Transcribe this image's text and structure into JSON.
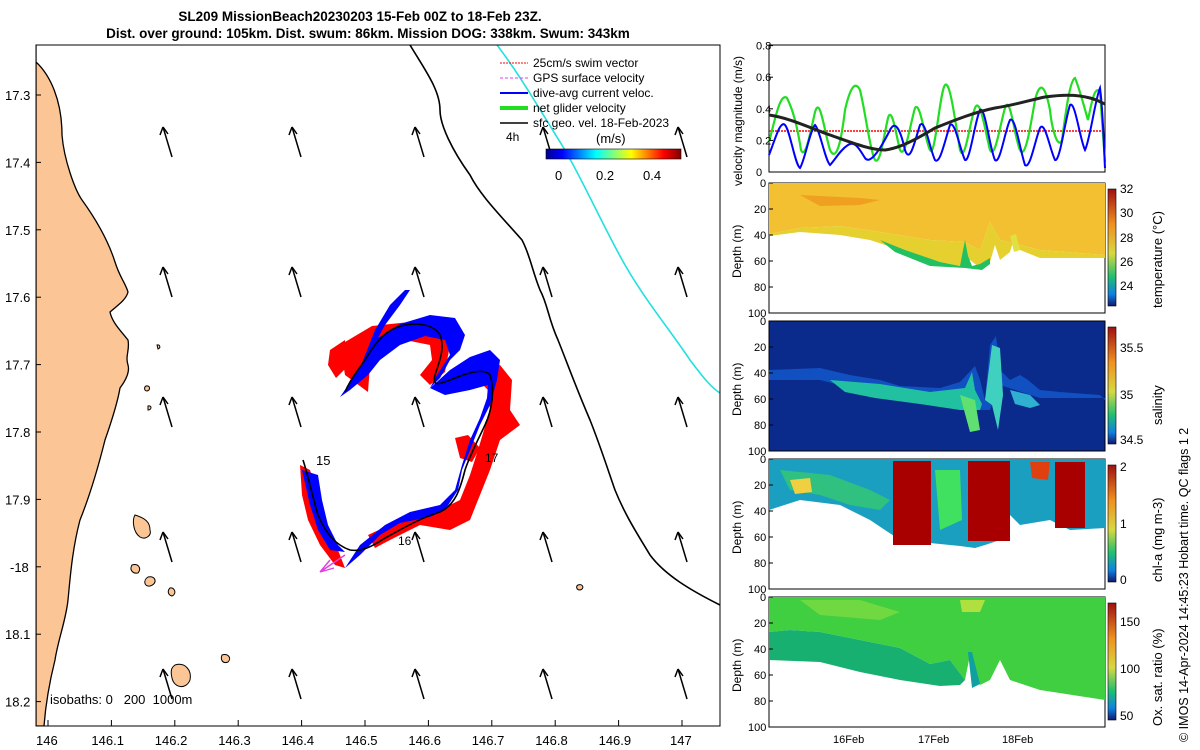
{
  "titles": {
    "line1": "SL209 MissionBeach20230203 15-Feb 00Z to 18-Feb 23Z.",
    "line2": "Dist. over ground: 105km. Dist. swum: 86km. Mission DOG: 338km. Swum: 343km"
  },
  "map": {
    "lon_ticks": [
      "146",
      "146.1",
      "146.2",
      "146.3",
      "146.4",
      "146.5",
      "146.6",
      "146.7",
      "146.8",
      "146.9",
      "147"
    ],
    "lat_ticks": [
      "17.3",
      "17.4",
      "17.5",
      "17.6",
      "17.7",
      "17.8",
      "17.9",
      "-18",
      "18.1",
      "18.2"
    ],
    "legend": [
      "25cm/s swim vector",
      "GPS surface velocity",
      "dive-avg current veloc.",
      "net glider velocity",
      "sfc geo. vel. 18-Feb-2023"
    ],
    "colorbar": {
      "interval": "4h",
      "unit": "(m/s)",
      "ticks": [
        "0",
        "0.2",
        "0.4"
      ]
    },
    "isobaths_label": "isobaths: 0   200  1000m",
    "day_labels": [
      "15",
      "16",
      "17"
    ],
    "colors": {
      "land": "#fbc595",
      "swim": "#ff0000",
      "gps": "#e040e0",
      "dive_avg": "#0000ff",
      "net": "#22dd22",
      "geo": "#000000",
      "track": "#00e0e0"
    }
  },
  "right_panels": {
    "xticks": [
      "16Feb",
      "17Feb",
      "18Feb"
    ],
    "velocity": {
      "ylabel": "velocity magnitude (m/s)",
      "yticks": [
        "0",
        "0.2",
        "0.4",
        "0.6",
        "0.8"
      ]
    },
    "panels": [
      {
        "name": "temperature",
        "cb_label": "temperature (°C)",
        "cb_ticks": [
          "32",
          "30",
          "28",
          "26",
          "24"
        ],
        "yticks": [
          "0",
          "20",
          "40",
          "60",
          "80",
          "100"
        ],
        "ylabel": "Depth (m)"
      },
      {
        "name": "salinity",
        "cb_label": "salinity",
        "cb_ticks": [
          "35.5",
          "35",
          "34.5"
        ],
        "yticks": [
          "0",
          "20",
          "40",
          "60",
          "80",
          "100"
        ],
        "ylabel": "Depth (m)"
      },
      {
        "name": "chla",
        "cb_label": "chl-a (mg m-3)",
        "cb_ticks": [
          "2",
          "1",
          "0"
        ],
        "yticks": [
          "0",
          "20",
          "40",
          "60",
          "80",
          "100"
        ],
        "ylabel": "Depth (m)"
      },
      {
        "name": "oxygen",
        "cb_label": "Ox. sat. ratio (%)",
        "cb_ticks": [
          "150",
          "100",
          "50"
        ],
        "yticks": [
          "0",
          "20",
          "40",
          "60",
          "80",
          "100"
        ],
        "ylabel": "Depth (m)"
      }
    ]
  },
  "credit": "© IMOS 14-Apr-2024 14:45:23 Hobart time. QC flags 1  2"
}
